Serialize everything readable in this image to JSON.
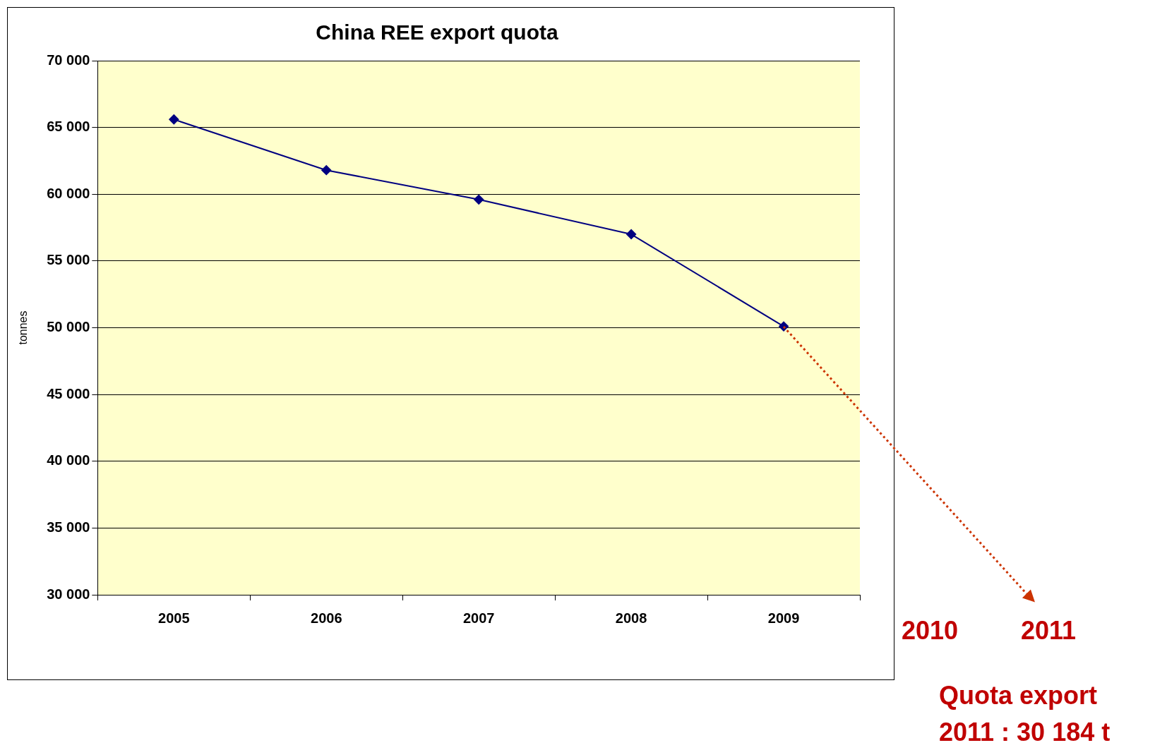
{
  "chart_data": {
    "type": "line",
    "title": "China REE export quota",
    "ylabel": "tonnes",
    "categories": [
      "2005",
      "2006",
      "2007",
      "2008",
      "2009"
    ],
    "series": [
      {
        "color": "#000080",
        "values": [
          65600,
          61800,
          59600,
          57000,
          50100
        ]
      }
    ],
    "ylim": [
      30000,
      70000
    ],
    "yticks": [
      {
        "value": 30000,
        "label": "30 000"
      },
      {
        "value": 35000,
        "label": "35 000"
      },
      {
        "value": 40000,
        "label": "40 000"
      },
      {
        "value": 45000,
        "label": "45 000"
      },
      {
        "value": 50000,
        "label": "50 000"
      },
      {
        "value": 55000,
        "label": "55 000"
      },
      {
        "value": 60000,
        "label": "60 000"
      },
      {
        "value": 65000,
        "label": "65 000"
      },
      {
        "value": 70000,
        "label": "70 000"
      }
    ],
    "grid": "y",
    "legend": false,
    "marker": "diamond",
    "line_style": "solid",
    "annotations": [
      "2010",
      "2011",
      "Quota export 2011 : 30 184 t"
    ]
  }
}
